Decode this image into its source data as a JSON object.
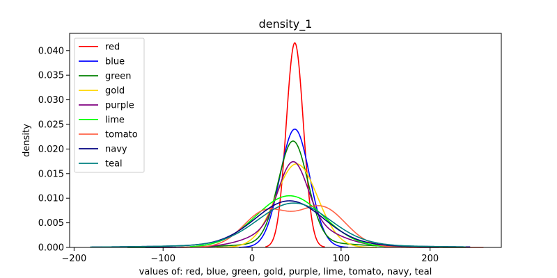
{
  "chart_data": {
    "type": "line",
    "title": "density_1",
    "xlabel": "values of: red, blue, green, gold, purple, lime, tomato, navy, teal",
    "ylabel": "density",
    "xlim": [
      -205,
      280
    ],
    "ylim": [
      0,
      0.0435
    ],
    "xticks": [
      -200,
      -100,
      0,
      100,
      200
    ],
    "xtick_labels": [
      "−200",
      "−100",
      "0",
      "100",
      "200"
    ],
    "yticks": [
      0,
      0.005,
      0.01,
      0.015,
      0.02,
      0.025,
      0.03,
      0.035,
      0.04
    ],
    "ytick_labels": [
      "0.000",
      "0.005",
      "0.010",
      "0.015",
      "0.020",
      "0.025",
      "0.030",
      "0.035",
      "0.040"
    ],
    "grid": false,
    "legend_position": "top-left",
    "series": [
      {
        "name": "red",
        "color": "#ff0000",
        "components": [
          {
            "mu": 48,
            "sigma": 9.6,
            "weight": 1
          }
        ],
        "range": [
          15,
          82
        ]
      },
      {
        "name": "blue",
        "color": "#0000ff",
        "components": [
          {
            "mu": 48,
            "sigma": 16.6,
            "weight": 1
          }
        ],
        "range": [
          -15,
          108
        ]
      },
      {
        "name": "green",
        "color": "#008000",
        "components": [
          {
            "mu": 46,
            "sigma": 16.5,
            "weight": 0.85
          },
          {
            "mu": 55,
            "sigma": 55,
            "weight": 0.15
          }
        ],
        "range": [
          -140,
          240
        ]
      },
      {
        "name": "gold",
        "color": "#ffd700",
        "components": [
          {
            "mu": 50,
            "sigma": 23.5,
            "weight": 1
          }
        ],
        "range": [
          -40,
          140
        ]
      },
      {
        "name": "purple",
        "color": "#800080",
        "components": [
          {
            "mu": 46,
            "sigma": 16,
            "weight": 0.5
          },
          {
            "mu": 50,
            "sigma": 40,
            "weight": 0.5
          }
        ],
        "range": [
          -120,
          210
        ]
      },
      {
        "name": "lime",
        "color": "#00ff00",
        "components": [
          {
            "mu": 42,
            "sigma": 38,
            "weight": 1
          }
        ],
        "range": [
          -70,
          150
        ]
      },
      {
        "name": "tomato",
        "color": "#ff6347",
        "components": [
          {
            "mu": 15,
            "sigma": 25,
            "weight": 0.45
          },
          {
            "mu": 78,
            "sigma": 27,
            "weight": 0.55
          }
        ],
        "range": [
          -80,
          260
        ]
      },
      {
        "name": "navy",
        "color": "#000080",
        "components": [
          {
            "mu": 42,
            "sigma": 38,
            "weight": 0.85
          },
          {
            "mu": 40,
            "sigma": 110,
            "weight": 0.15
          }
        ],
        "range": [
          -180,
          245
        ]
      },
      {
        "name": "teal",
        "color": "#008080",
        "components": [
          {
            "mu": 47,
            "sigma": 40,
            "weight": 0.85
          },
          {
            "mu": 40,
            "sigma": 110,
            "weight": 0.15
          }
        ],
        "range": [
          -182,
          240
        ]
      }
    ]
  }
}
